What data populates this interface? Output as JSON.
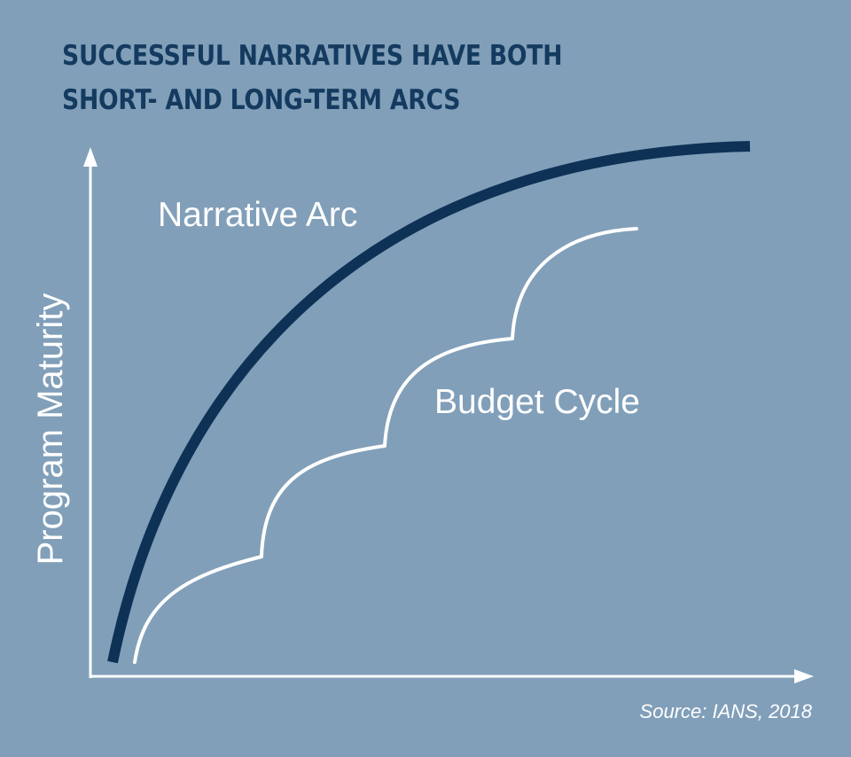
{
  "title": {
    "line1": "SUCCESSFUL NARRATIVES HAVE BOTH",
    "line2": "SHORT- AND LONG-TERM ARCS"
  },
  "diagram": {
    "y_axis_label": "Program Maturity",
    "curves": [
      {
        "name": "Narrative Arc",
        "color": "#0d3256"
      },
      {
        "name": "Budget Cycle",
        "color": "#ffffff"
      }
    ]
  },
  "source": "Source: IANS, 2018",
  "colors": {
    "background": "#819fb9",
    "title": "#143b5f",
    "axis": "#ffffff"
  }
}
